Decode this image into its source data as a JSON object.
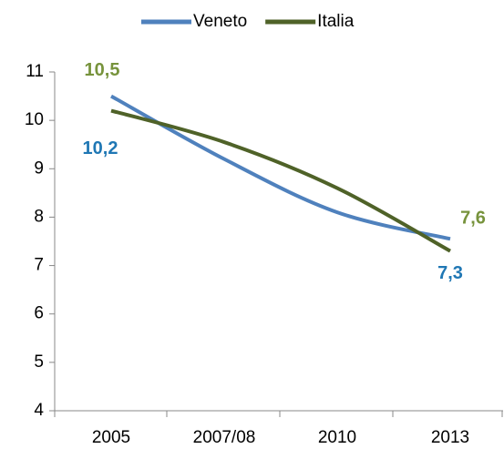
{
  "chart_data": {
    "type": "line",
    "categories": [
      "2005",
      "2007/08",
      "2010",
      "2013"
    ],
    "series": [
      {
        "name": "Veneto",
        "color": "#4f81bd",
        "label_color": "#77933c",
        "values": [
          10.5,
          9.2,
          8.1,
          7.55
        ],
        "value_labels": [
          "10,5",
          null,
          null,
          "7,6"
        ]
      },
      {
        "name": "Italia",
        "color": "#4f6228",
        "label_color": "#1f77b4",
        "values": [
          10.2,
          9.55,
          8.6,
          7.3
        ],
        "value_labels": [
          "10,2",
          null,
          null,
          "7,3"
        ]
      }
    ],
    "ylim": [
      4,
      11
    ],
    "yticks": [
      4,
      5,
      6,
      7,
      8,
      9,
      10,
      11
    ],
    "smooth": true,
    "legend": "top"
  }
}
